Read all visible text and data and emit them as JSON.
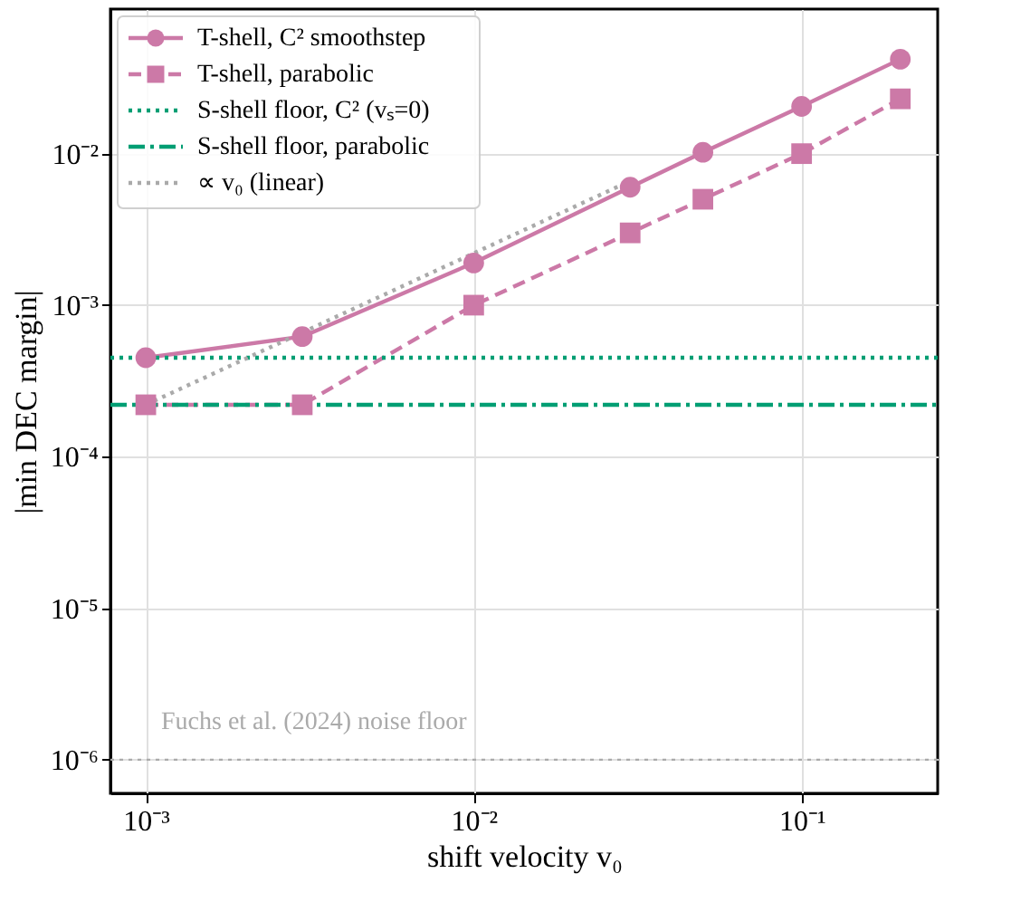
{
  "chart_data": {
    "type": "line",
    "xlabel": "shift velocity v₀",
    "ylabel": "|min DEC margin|",
    "log": "xy",
    "grid": true,
    "legend": "top left",
    "xlim": [
      0.00078,
      0.26
    ],
    "ylim": [
      6e-07,
      0.09
    ],
    "xticks": [
      {
        "value": 0.001,
        "label": "10⁻³"
      },
      {
        "value": 0.01,
        "label": "10⁻²"
      },
      {
        "value": 0.1,
        "label": "10⁻¹"
      }
    ],
    "yticks": [
      {
        "value": 1e-06,
        "label": "10⁻⁶"
      },
      {
        "value": 1e-05,
        "label": "10⁻⁵"
      },
      {
        "value": 0.0001,
        "label": "10⁻⁴"
      },
      {
        "value": 0.001,
        "label": "10⁻³"
      },
      {
        "value": 0.01,
        "label": "10⁻²"
      }
    ],
    "series": [
      {
        "name": "T-shell, C² smoothstep",
        "color": "#cc79a7",
        "marker": "circle",
        "line_style": "solid",
        "x": [
          0.001,
          0.003,
          0.01,
          0.03,
          0.05,
          0.1,
          0.2
        ],
        "values": [
          0.00045,
          0.00062,
          0.0019,
          0.006,
          0.0102,
          0.0205,
          0.042
        ]
      },
      {
        "name": "T-shell, parabolic",
        "color": "#cc79a7",
        "marker": "square",
        "line_style": "dashed",
        "x": [
          0.001,
          0.003,
          0.01,
          0.03,
          0.05,
          0.1,
          0.2
        ],
        "values": [
          0.00022,
          0.00022,
          0.001,
          0.003,
          0.005,
          0.01,
          0.023
        ]
      },
      {
        "name": "S-shell floor, C² (vₛ=0)",
        "color": "#009e73",
        "marker": "none",
        "line_style": "dotted",
        "x": [
          0.00078,
          0.26
        ],
        "values": [
          0.00045,
          0.00045
        ]
      },
      {
        "name": "S-shell floor, parabolic",
        "color": "#009e73",
        "marker": "none",
        "line_style": "dashdot",
        "x": [
          0.00078,
          0.26
        ],
        "values": [
          0.00022,
          0.00022
        ]
      },
      {
        "name": "∝ v₀ (linear)",
        "color": "#aaaaaa",
        "marker": "none",
        "line_style": "dotted",
        "x": [
          0.001,
          0.003,
          0.01,
          0.03
        ],
        "values": [
          0.00022,
          0.00066,
          0.0022,
          0.0066
        ]
      }
    ],
    "ref_lines": [
      {
        "axis": "y",
        "value": 1e-06,
        "label": "Fuchs et al. (2024) noise floor",
        "color": "#aaaaaa",
        "line_style": "dotted"
      }
    ]
  }
}
